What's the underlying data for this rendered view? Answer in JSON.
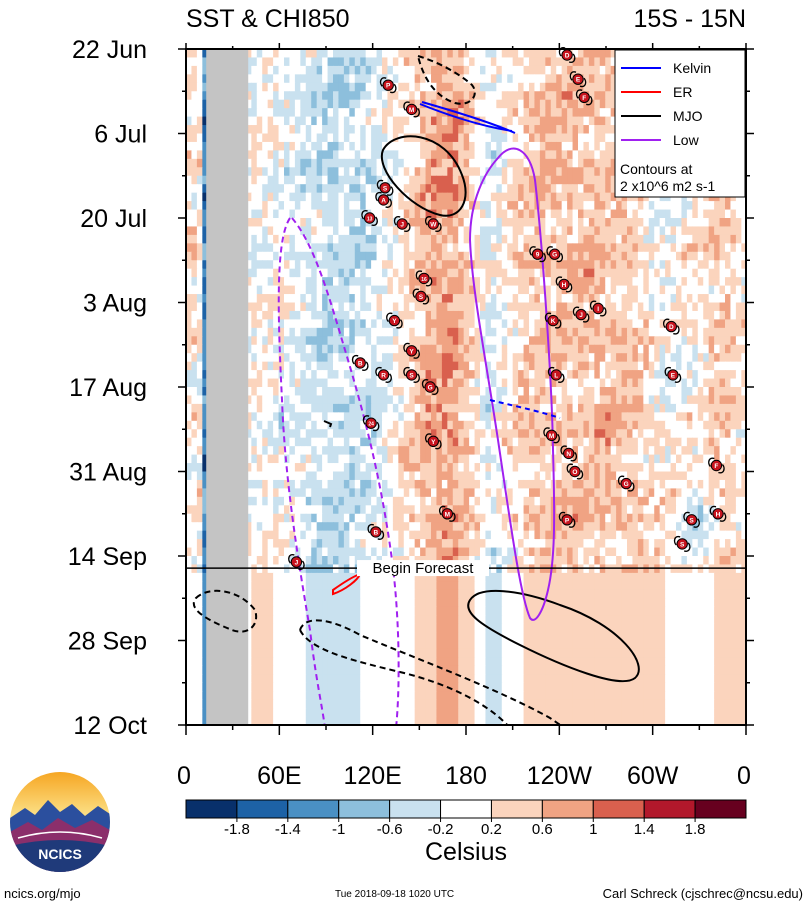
{
  "chart_data": {
    "type": "heatmap",
    "title": "SST & CHI850",
    "subtitle": "15S - 15N",
    "xlabel": "",
    "ylabel": "",
    "x_ticks": [
      "0",
      "60E",
      "120E",
      "180",
      "120W",
      "60W",
      "0"
    ],
    "x_tick_lon": [
      0,
      60,
      120,
      180,
      240,
      300,
      360
    ],
    "y_ticks": [
      "22 Jun",
      "6 Jul",
      "20 Jul",
      "3 Aug",
      "17 Aug",
      "31 Aug",
      "14 Sep",
      "28 Sep",
      "12 Oct"
    ],
    "y_tick_day": [
      0,
      14,
      28,
      42,
      56,
      70,
      84,
      98,
      112
    ],
    "xlim_lon": [
      0,
      360
    ],
    "ylim_day": [
      0,
      112
    ],
    "forecast_start_day": 86,
    "forecast_label": "Begin Forecast",
    "missing_band_lon": [
      13,
      40
    ],
    "colorbar": {
      "label": "Celsius",
      "tick_labels": [
        "-1.8",
        "-1.4",
        "-1",
        "-0.6",
        "-0.2",
        "0.2",
        "0.6",
        "1",
        "1.4",
        "1.8"
      ],
      "colors": [
        "#08306b",
        "#1d62a6",
        "#4a90c4",
        "#8dbfdc",
        "#c9e1ef",
        "#ffffff",
        "#fbd4bd",
        "#f0a383",
        "#d9604e",
        "#b2182b",
        "#67001f"
      ]
    },
    "legend": {
      "position": "top-right",
      "entries": [
        {
          "name": "Kelvin",
          "color": "#0000ff"
        },
        {
          "name": "ER",
          "color": "#ff0000"
        },
        {
          "name": "MJO",
          "color": "#000000"
        },
        {
          "name": "Low",
          "color": "#a020f0"
        }
      ],
      "note_line1": "Contours at",
      "note_line2": "2 x10^6 m2 s-1"
    },
    "storms": [
      {
        "label": "D",
        "lon": 245,
        "day": 1
      },
      {
        "label": "P",
        "lon": 130,
        "day": 6
      },
      {
        "label": "E",
        "lon": 252,
        "day": 5
      },
      {
        "label": "F",
        "lon": 256,
        "day": 8
      },
      {
        "label": "M",
        "lon": 145,
        "day": 10
      },
      {
        "label": "S",
        "lon": 128,
        "day": 23
      },
      {
        "label": "A",
        "lon": 127,
        "day": 25
      },
      {
        "label": "13",
        "lon": 118,
        "day": 28
      },
      {
        "label": "J",
        "lon": 139,
        "day": 29
      },
      {
        "label": "W",
        "lon": 159,
        "day": 29
      },
      {
        "label": "9",
        "lon": 226,
        "day": 34
      },
      {
        "label": "G",
        "lon": 237,
        "day": 34
      },
      {
        "label": "16",
        "lon": 153,
        "day": 38
      },
      {
        "label": "H",
        "lon": 243,
        "day": 39
      },
      {
        "label": "S",
        "lon": 151,
        "day": 41
      },
      {
        "label": "J",
        "lon": 254,
        "day": 44
      },
      {
        "label": "I",
        "lon": 265,
        "day": 43
      },
      {
        "label": "K",
        "lon": 236,
        "day": 45
      },
      {
        "label": "Y",
        "lon": 134,
        "day": 45
      },
      {
        "label": "D",
        "lon": 312,
        "day": 46
      },
      {
        "label": "Y",
        "lon": 145,
        "day": 50
      },
      {
        "label": "B",
        "lon": 112,
        "day": 52
      },
      {
        "label": "R",
        "lon": 127,
        "day": 54
      },
      {
        "label": "S",
        "lon": 145,
        "day": 54
      },
      {
        "label": "E",
        "lon": 313,
        "day": 54
      },
      {
        "label": "L",
        "lon": 238,
        "day": 54
      },
      {
        "label": "G",
        "lon": 157,
        "day": 56
      },
      {
        "label": "24",
        "lon": 119,
        "day": 62
      },
      {
        "label": "M",
        "lon": 235,
        "day": 64
      },
      {
        "label": "Y",
        "lon": 159,
        "day": 65
      },
      {
        "label": "N",
        "lon": 246,
        "day": 67
      },
      {
        "label": "F",
        "lon": 341,
        "day": 69
      },
      {
        "label": "O",
        "lon": 250,
        "day": 70
      },
      {
        "label": "G",
        "lon": 283,
        "day": 72
      },
      {
        "label": "M",
        "lon": 168,
        "day": 77
      },
      {
        "label": "P",
        "lon": 245,
        "day": 78
      },
      {
        "label": "S",
        "lon": 325,
        "day": 78
      },
      {
        "label": "H",
        "lon": 342,
        "day": 77
      },
      {
        "label": "B",
        "lon": 122,
        "day": 80
      },
      {
        "label": "S",
        "lon": 319,
        "day": 82
      },
      {
        "label": "J",
        "lon": 71,
        "day": 85
      }
    ]
  },
  "footer": {
    "logo_text": "NCICS",
    "url": "ncics.org/mjo",
    "timestamp": "Tue 2018-09-18 1020 UTC",
    "author": "Carl Schreck (cjschrec@ncsu.edu)"
  }
}
